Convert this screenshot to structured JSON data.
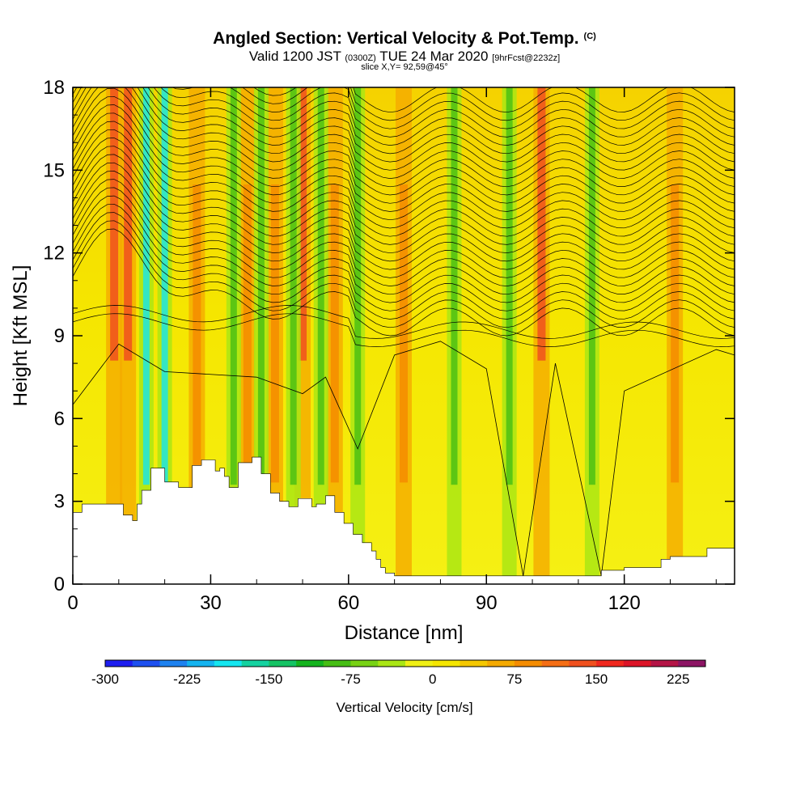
{
  "header": {
    "title": "Angled Section: Vertical Velocity & Pot.Temp.",
    "title_tag": "(C)",
    "valid_a": "Valid 1200 JST",
    "valid_z": "(0300Z)",
    "valid_b": "TUE 24 Mar 2020",
    "forecast": "[9hrFcst@2232z]",
    "slice": "slice X,Y= 92,59@45°"
  },
  "chart_data": {
    "type": "heatmap",
    "xlabel": "Distance [nm]",
    "ylabel": "Height [Kft MSL]",
    "xlim": [
      0,
      144
    ],
    "ylim": [
      0,
      18
    ],
    "x_ticks": [
      0,
      30,
      60,
      90,
      120
    ],
    "y_ticks": [
      0,
      3,
      6,
      9,
      12,
      15,
      18
    ],
    "colorbar": {
      "label": "Vertical Velocity [cm/s]",
      "min": -300,
      "max": 250,
      "step": 25,
      "tick_values": [
        -300,
        -225,
        -150,
        -75,
        0,
        75,
        150,
        225
      ],
      "colors": [
        "#1e1ef0",
        "#1e50f0",
        "#1e82f0",
        "#14b4f0",
        "#14e6f0",
        "#14d2a0",
        "#14c364",
        "#14b41e",
        "#46be14",
        "#78d214",
        "#aae614",
        "#f0f014",
        "#f5e600",
        "#f5c800",
        "#f5aa00",
        "#f58c00",
        "#f56e14",
        "#f0501e",
        "#f0281e",
        "#dc1428",
        "#b41446",
        "#8c1464"
      ]
    },
    "updraft_bands_nm": [
      9,
      12,
      27,
      38,
      44,
      50,
      57,
      72,
      102,
      131
    ],
    "downdraft_bands_nm": [
      16,
      20,
      35,
      41,
      48,
      54,
      62,
      83,
      95,
      113
    ],
    "terrain": {
      "x": [
        0,
        2,
        9,
        11,
        13,
        14,
        15,
        17,
        18,
        20,
        23,
        26,
        28,
        30,
        31,
        32,
        33,
        34,
        36,
        39,
        41,
        43,
        45,
        47,
        49,
        51,
        52,
        53,
        55,
        57,
        59,
        61,
        63,
        65,
        66,
        67,
        68,
        70,
        72,
        75,
        80,
        90,
        100,
        110,
        113,
        115,
        120,
        125,
        128,
        130,
        135,
        138,
        140,
        144
      ],
      "y": [
        2.6,
        2.9,
        2.9,
        2.5,
        2.3,
        2.9,
        3.4,
        4.2,
        4.2,
        3.7,
        3.5,
        4.3,
        4.5,
        4.5,
        4.1,
        4.2,
        3.9,
        3.5,
        4.4,
        4.6,
        4.0,
        3.3,
        3.0,
        2.8,
        3.1,
        3.1,
        2.8,
        2.9,
        3.2,
        2.6,
        2.2,
        1.8,
        1.5,
        1.2,
        0.9,
        0.6,
        0.4,
        0.3,
        0.3,
        0.3,
        0.3,
        0.3,
        0.3,
        0.3,
        0.3,
        0.5,
        0.6,
        0.6,
        0.9,
        1.0,
        1.0,
        1.3,
        1.3,
        1.3
      ]
    }
  }
}
